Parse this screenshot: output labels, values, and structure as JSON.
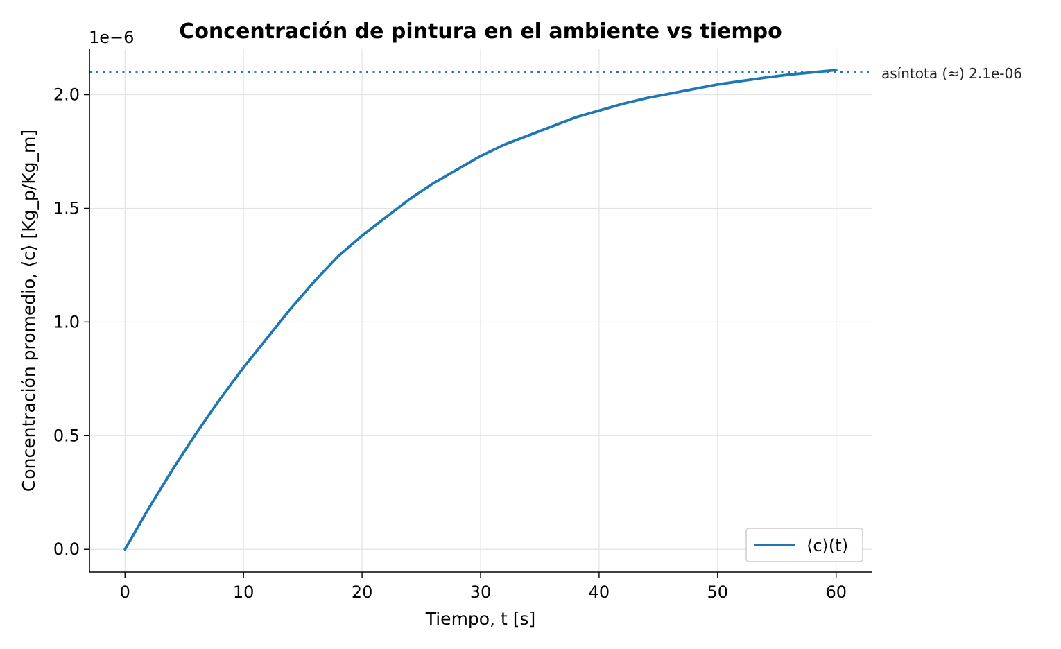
{
  "chart_data": {
    "type": "line",
    "title": "Concentración de pintura en el ambiente vs tiempo",
    "xlabel": "Tiempo, t [s]",
    "ylabel": "Concentración promedio, ⟨c⟩ [Kg_p/Kg_m]",
    "y_offset_label": "1e−6",
    "xlim": [
      -3,
      63
    ],
    "ylim": [
      -1e-07,
      2.2e-06
    ],
    "x_ticks": [
      0,
      10,
      20,
      30,
      40,
      50,
      60
    ],
    "x_tick_labels": [
      "0",
      "10",
      "20",
      "30",
      "40",
      "50",
      "60"
    ],
    "y_ticks": [
      0,
      5e-07,
      1e-06,
      1.5e-06,
      2e-06
    ],
    "y_tick_labels": [
      "0.0",
      "0.5",
      "1.0",
      "1.5",
      "2.0"
    ],
    "grid": true,
    "legend_position": "lower-right",
    "series": [
      {
        "name": "⟨c⟩(t)",
        "color": "#1f77b4",
        "x": [
          0,
          2,
          4,
          6,
          8,
          10,
          12,
          14,
          16,
          18,
          20,
          22,
          24,
          26,
          28,
          30,
          32,
          34,
          36,
          38,
          40,
          42,
          44,
          46,
          48,
          50,
          52,
          54,
          56,
          58,
          60
        ],
        "y": [
          0,
          1.8e-07,
          3.5e-07,
          5.1e-07,
          6.6e-07,
          8e-07,
          9.3e-07,
          1.06e-06,
          1.18e-06,
          1.29e-06,
          1.38e-06,
          1.46e-06,
          1.54e-06,
          1.61e-06,
          1.67e-06,
          1.73e-06,
          1.78e-06,
          1.82e-06,
          1.86e-06,
          1.9e-06,
          1.93e-06,
          1.96e-06,
          1.985e-06,
          2.005e-06,
          2.025e-06,
          2.045e-06,
          2.06e-06,
          2.075e-06,
          2.088e-06,
          2.098e-06,
          2.108e-06
        ]
      }
    ],
    "asymptote": {
      "value": 2.1e-06,
      "label": "asíntota (≈) 2.1e-06",
      "color": "#1f77b4",
      "style": "dotted"
    }
  }
}
